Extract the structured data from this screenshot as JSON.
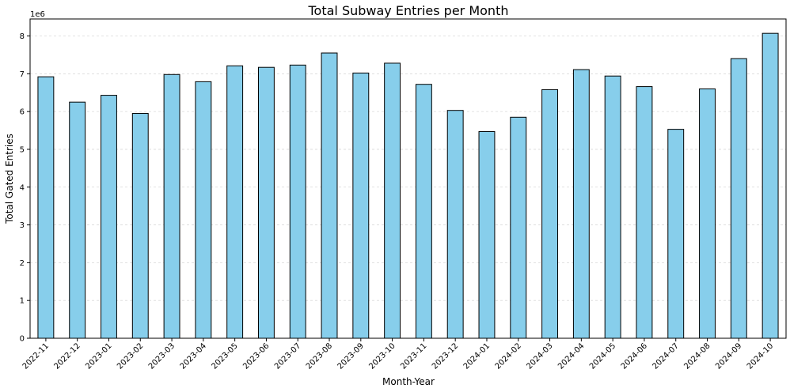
{
  "chart_data": {
    "type": "bar",
    "title": "Total Subway Entries per Month",
    "xlabel": "Month-Year",
    "ylabel": "Total Gated Entries",
    "y_offset_label": "1e6",
    "ylim": [
      0,
      8.45
    ],
    "yticks": [
      0,
      1,
      2,
      3,
      4,
      5,
      6,
      7,
      8
    ],
    "grid": "y-dashed-light",
    "bar_color": "#87ceeb",
    "edge_color": "#000000",
    "categories": [
      "2022-11",
      "2022-12",
      "2023-01",
      "2023-02",
      "2023-03",
      "2023-04",
      "2023-05",
      "2023-06",
      "2023-07",
      "2023-08",
      "2023-09",
      "2023-10",
      "2023-11",
      "2023-12",
      "2024-01",
      "2024-02",
      "2024-03",
      "2024-04",
      "2024-05",
      "2024-06",
      "2024-07",
      "2024-08",
      "2024-09",
      "2024-10"
    ],
    "values": [
      6.92,
      6.25,
      6.43,
      5.95,
      6.98,
      6.79,
      7.21,
      7.17,
      7.23,
      7.55,
      7.02,
      7.28,
      6.72,
      6.03,
      5.47,
      5.85,
      6.58,
      7.11,
      6.94,
      6.66,
      5.53,
      6.6,
      7.4,
      8.07
    ]
  }
}
